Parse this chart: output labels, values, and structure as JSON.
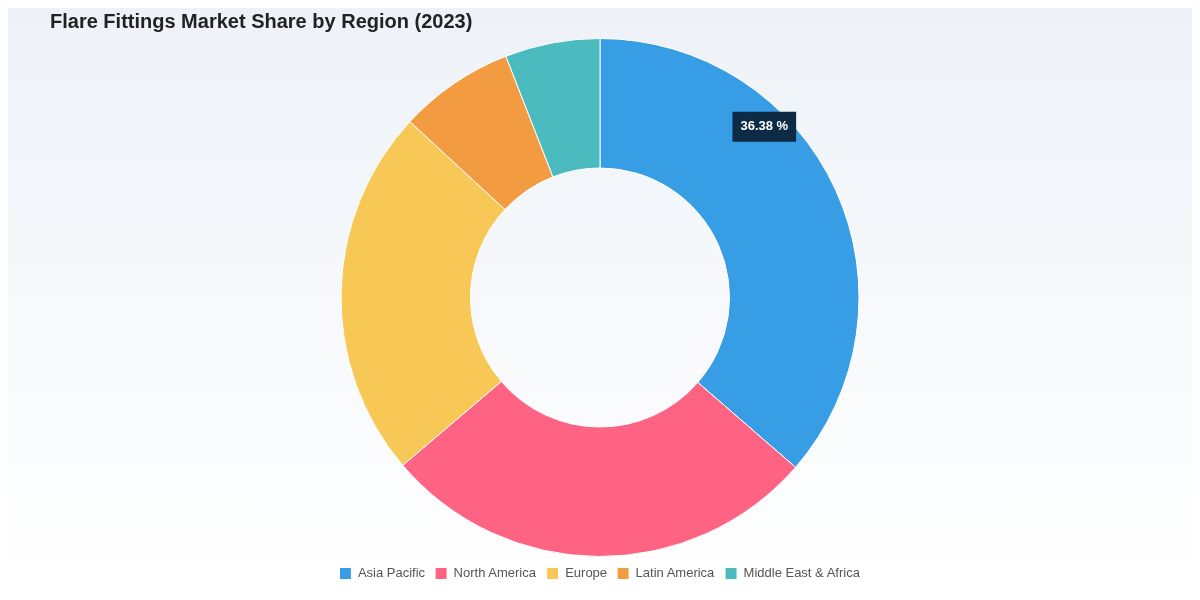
{
  "chart_data": {
    "type": "donut",
    "title": "Flare Fittings Market Share by Region (2023)",
    "categories": [
      "Asia Pacific",
      "North America",
      "Europe",
      "Latin America",
      "Middle East & Africa"
    ],
    "values": [
      36.38,
      27.4,
      23.1,
      7.2,
      5.92
    ],
    "colors": [
      "#379de5",
      "#fe6384",
      "#f7c856",
      "#f39b40",
      "#4bbbc0"
    ],
    "value_labels": [
      "36.38 %",
      null,
      null,
      null,
      null
    ],
    "legend": "bottom"
  }
}
